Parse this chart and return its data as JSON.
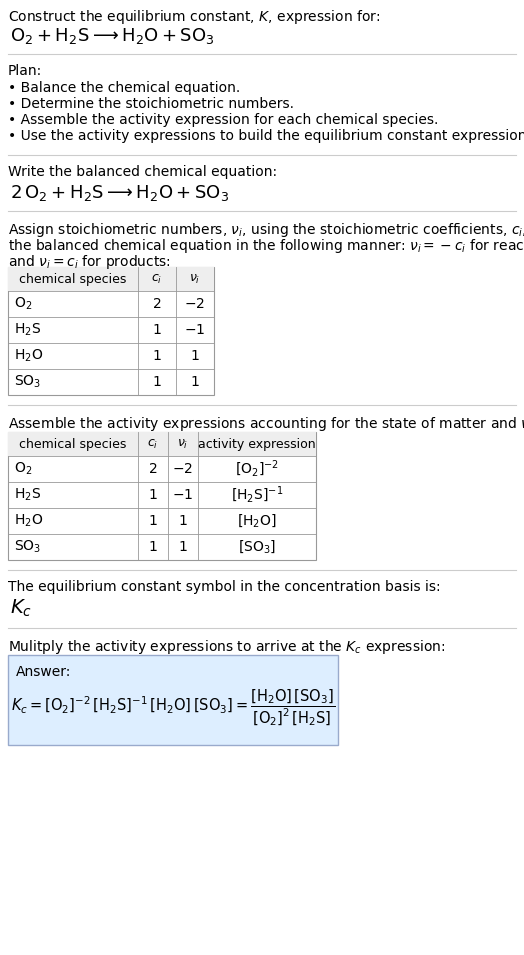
{
  "bg_color": "#ffffff",
  "table_border": "#aaaaaa",
  "answer_box_bg": "#ddeeff",
  "answer_box_border": "#99aacc",
  "section1_title": "Construct the equilibrium constant, $K$, expression for:",
  "section1_reaction": "$\\mathrm{O_2 + H_2S \\longrightarrow H_2O + SO_3}$",
  "plan_header": "Plan:",
  "plan_items": [
    "• Balance the chemical equation.",
    "• Determine the stoichiometric numbers.",
    "• Assemble the activity expression for each chemical species.",
    "• Use the activity expressions to build the equilibrium constant expression."
  ],
  "balanced_header": "Write the balanced chemical equation:",
  "balanced_reaction": "$\\mathrm{2\\,O_2 + H_2S \\longrightarrow H_2O + SO_3}$",
  "stoich_line1": "Assign stoichiometric numbers, $\\nu_i$, using the stoichiometric coefficients, $c_i$, from",
  "stoich_line2": "the balanced chemical equation in the following manner: $\\nu_i = -c_i$ for reactants",
  "stoich_line3": "and $\\nu_i = c_i$ for products:",
  "table1_headers": [
    "chemical species",
    "$c_i$",
    "$\\nu_i$"
  ],
  "table1_rows": [
    [
      "$\\mathrm{O_2}$",
      "2",
      "$-2$"
    ],
    [
      "$\\mathrm{H_2S}$",
      "1",
      "$-1$"
    ],
    [
      "$\\mathrm{H_2O}$",
      "1",
      "$1$"
    ],
    [
      "$\\mathrm{SO_3}$",
      "1",
      "$1$"
    ]
  ],
  "activity_intro": "Assemble the activity expressions accounting for the state of matter and $\\nu_i$:",
  "table2_headers": [
    "chemical species",
    "$c_i$",
    "$\\nu_i$",
    "activity expression"
  ],
  "table2_rows": [
    [
      "$\\mathrm{O_2}$",
      "2",
      "$-2$",
      "$[\\mathrm{O_2}]^{-2}$"
    ],
    [
      "$\\mathrm{H_2S}$",
      "1",
      "$-1$",
      "$[\\mathrm{H_2S}]^{-1}$"
    ],
    [
      "$\\mathrm{H_2O}$",
      "1",
      "$1$",
      "$[\\mathrm{H_2O}]$"
    ],
    [
      "$\\mathrm{SO_3}$",
      "1",
      "$1$",
      "$[\\mathrm{SO_3}]$"
    ]
  ],
  "kc_symbol_text": "The equilibrium constant symbol in the concentration basis is:",
  "kc_symbol": "$K_c$",
  "multiply_text": "Mulitply the activity expressions to arrive at the $K_c$ expression:",
  "answer_label": "Answer:",
  "answer_eq": "$K_c = [\\mathrm{O_2}]^{-2}\\,[\\mathrm{H_2S}]^{-1}\\,[\\mathrm{H_2O}]\\,[\\mathrm{SO_3}] = \\dfrac{[\\mathrm{H_2O}]\\,[\\mathrm{SO_3}]}{[\\mathrm{O_2}]^2\\,[\\mathrm{H_2S}]}$"
}
